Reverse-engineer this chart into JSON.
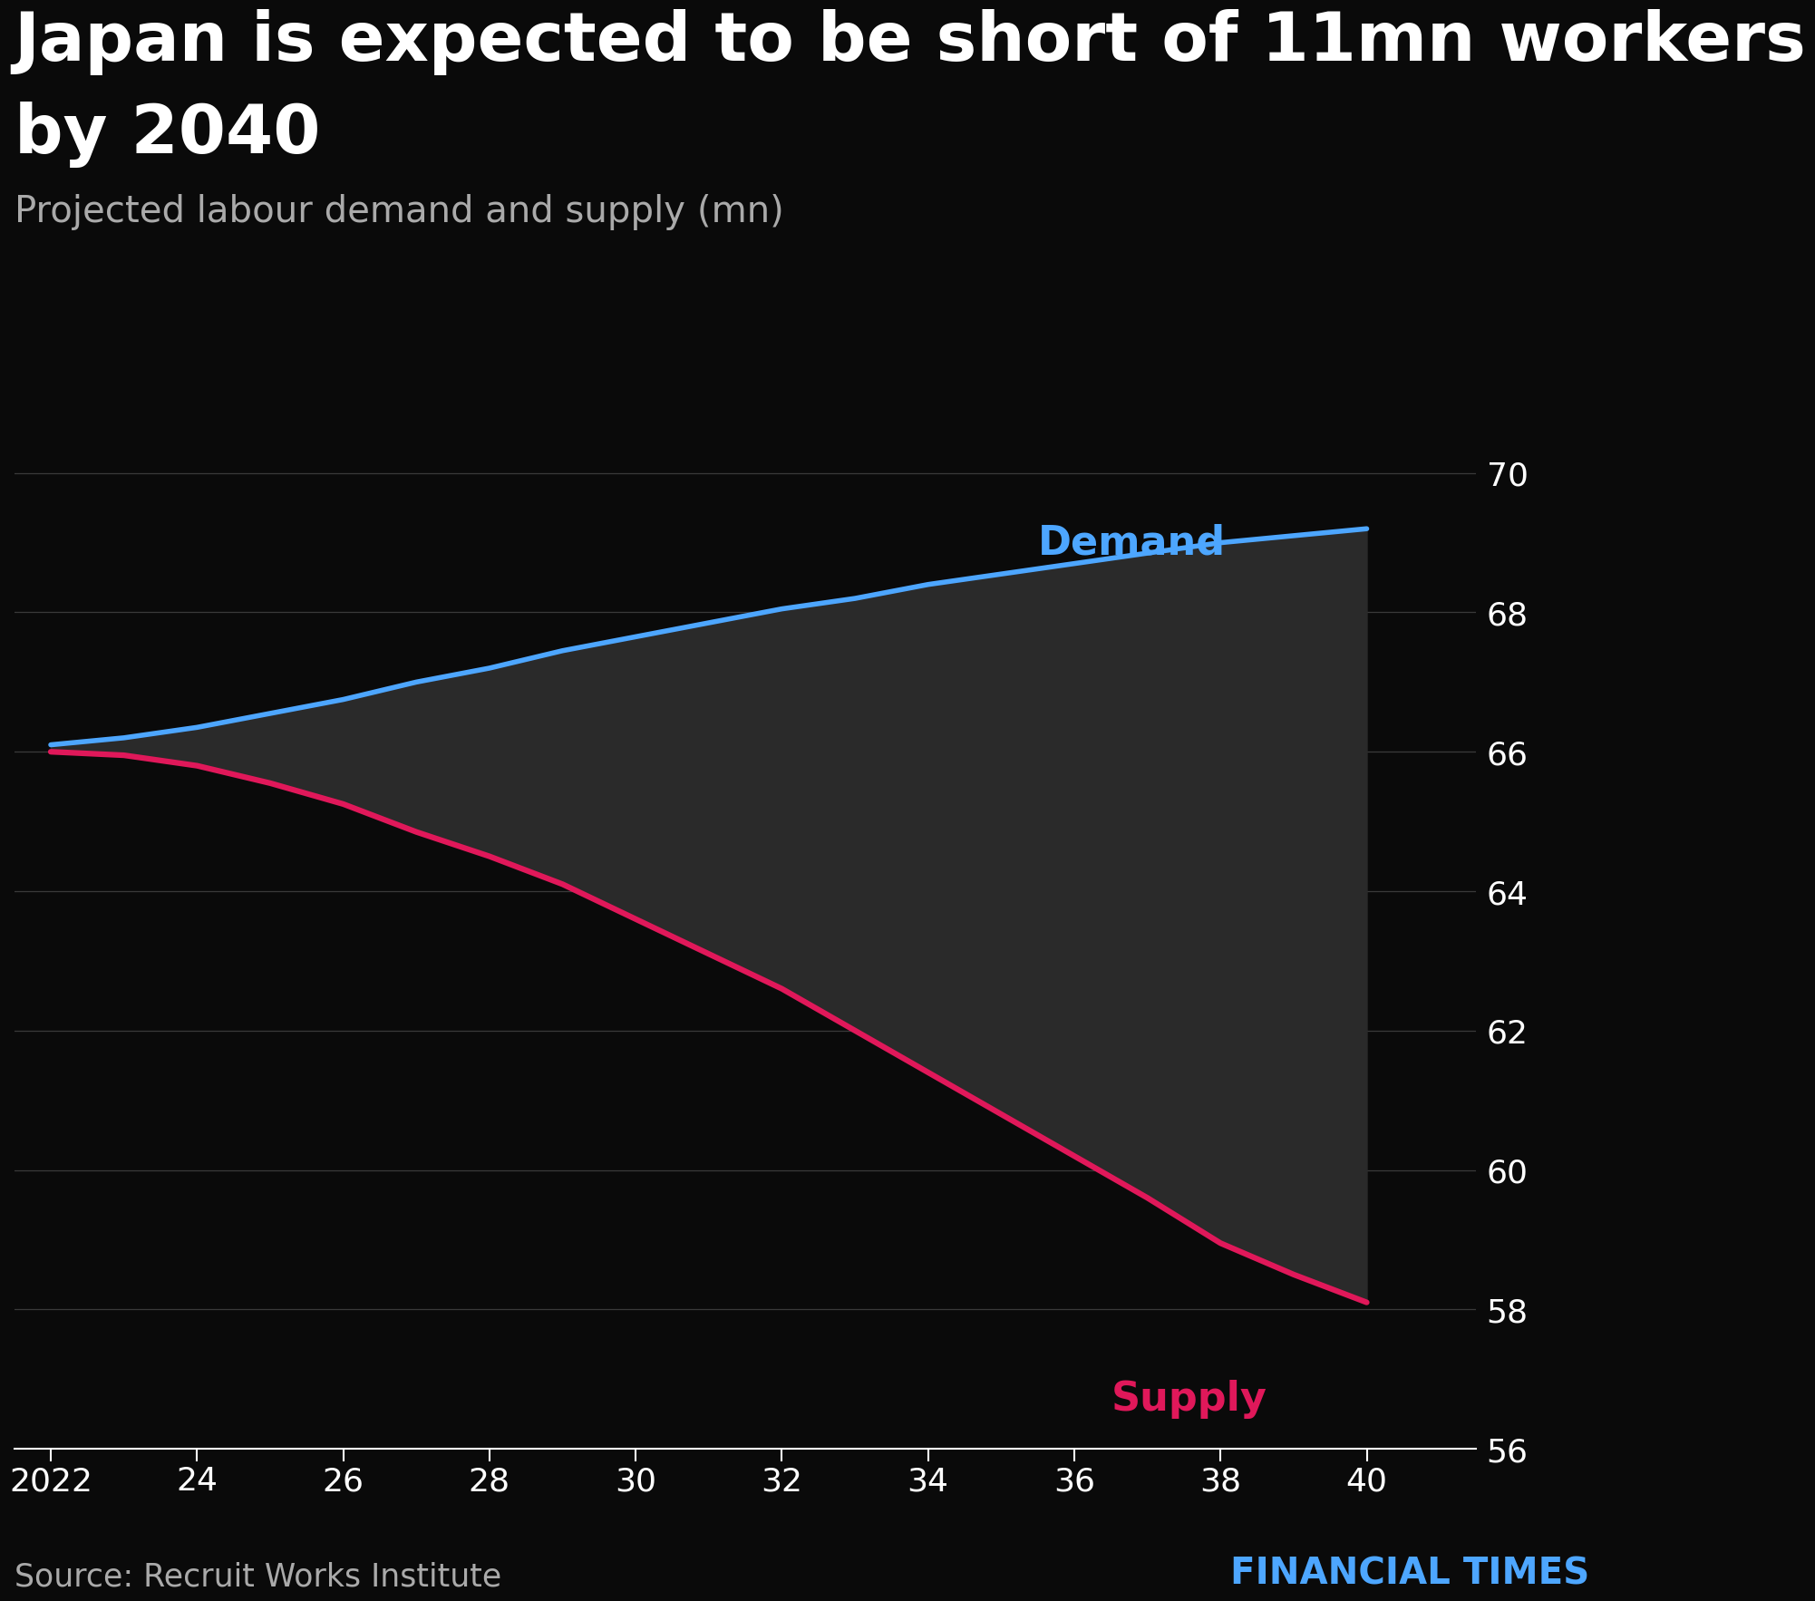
{
  "title_line1": "Japan is expected to be short of 11mn workers",
  "title_line2": "by 2040",
  "subtitle": "Projected labour demand and supply (mn)",
  "source": "Source: Recruit Works Institute",
  "branding": "FINANCIAL TIMES",
  "background_color": "#0a0a0a",
  "text_color": "#ffffff",
  "grid_color": "#3a3a3a",
  "demand_color": "#4da6ff",
  "supply_color": "#e0185a",
  "fill_color": "#2a2a2a",
  "demand_label": "Demand",
  "supply_label": "Supply",
  "x_years": [
    2022,
    2023,
    2024,
    2025,
    2026,
    2027,
    2028,
    2029,
    2030,
    2031,
    2032,
    2033,
    2034,
    2035,
    2036,
    2037,
    2038,
    2039,
    2040
  ],
  "demand_values": [
    66.1,
    66.2,
    66.35,
    66.55,
    66.75,
    67.0,
    67.2,
    67.45,
    67.65,
    67.85,
    68.05,
    68.2,
    68.4,
    68.55,
    68.7,
    68.85,
    69.0,
    69.1,
    69.2
  ],
  "supply_values": [
    66.0,
    65.95,
    65.8,
    65.55,
    65.25,
    64.85,
    64.5,
    64.1,
    63.6,
    63.1,
    62.6,
    62.0,
    61.4,
    60.8,
    60.2,
    59.6,
    58.95,
    58.5,
    58.1
  ],
  "ylim": [
    56,
    70.5
  ],
  "yticks": [
    56,
    58,
    60,
    62,
    64,
    66,
    68,
    70
  ],
  "xlim": [
    2021.5,
    2041.5
  ],
  "xtick_labels": [
    "2022",
    "24",
    "26",
    "28",
    "30",
    "32",
    "34",
    "36",
    "38",
    "40"
  ],
  "xtick_positions": [
    2022,
    2024,
    2026,
    2028,
    2030,
    2032,
    2034,
    2036,
    2038,
    2040
  ]
}
